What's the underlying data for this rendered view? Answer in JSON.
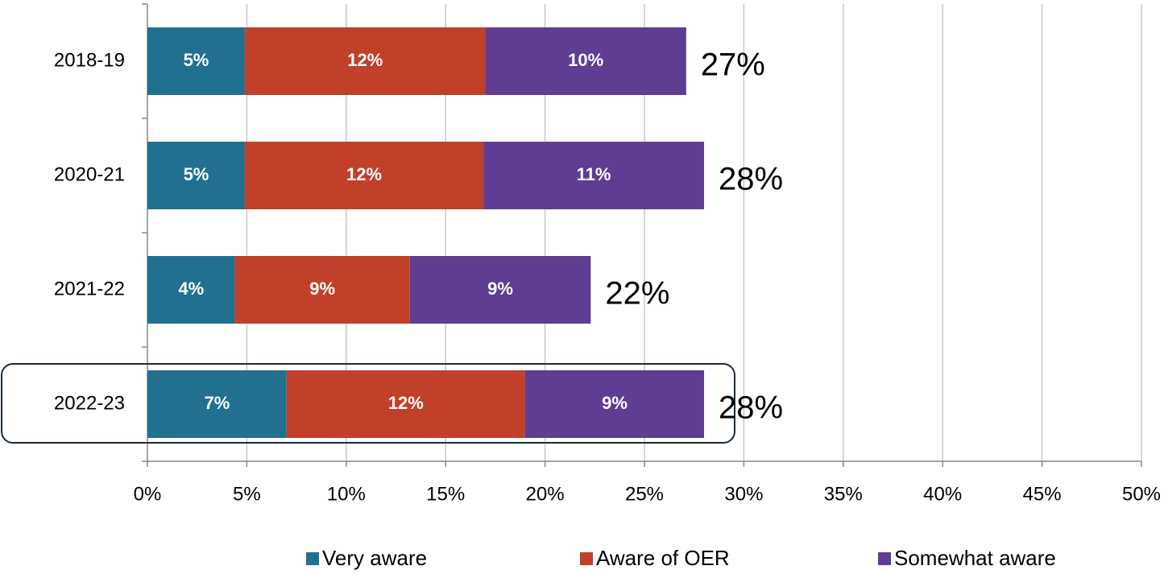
{
  "chart_data": {
    "type": "stacked_barh",
    "categories": [
      "2018-19",
      "2020-21",
      "2021-22",
      "2022-23"
    ],
    "series": [
      {
        "name": "Very aware",
        "color": "#22708f",
        "values": [
          4.9,
          4.9,
          4.4,
          7.0
        ],
        "value_labels": [
          "5%",
          "5%",
          "4%",
          "7%"
        ]
      },
      {
        "name": "Aware of OER",
        "color": "#c0402a",
        "values": [
          12.1,
          12.0,
          8.8,
          12.0
        ],
        "value_labels": [
          "12%",
          "12%",
          "9%",
          "12%"
        ]
      },
      {
        "name": "Somewhat aware",
        "color": "#5f3d92",
        "values": [
          10.1,
          11.1,
          9.1,
          9.0
        ],
        "value_labels": [
          "10%",
          "11%",
          "9%",
          "9%"
        ]
      }
    ],
    "totals": {
      "values": [
        27.1,
        28.0,
        22.3,
        28.0
      ],
      "value_labels": [
        "27%",
        "28%",
        "22%",
        "28%"
      ]
    },
    "xlim": [
      0,
      50
    ],
    "xticks": [
      {
        "value": 0,
        "label": "0%"
      },
      {
        "value": 5,
        "label": "5%"
      },
      {
        "value": 10,
        "label": "10%"
      },
      {
        "value": 15,
        "label": "15%"
      },
      {
        "value": 20,
        "label": "20%"
      },
      {
        "value": 25,
        "label": "25%"
      },
      {
        "value": 30,
        "label": "30%"
      },
      {
        "value": 35,
        "label": "35%"
      },
      {
        "value": 40,
        "label": "40%"
      },
      {
        "value": 45,
        "label": "45%"
      },
      {
        "value": 50,
        "label": "50%"
      }
    ],
    "grid": true,
    "legend": "bottom"
  }
}
